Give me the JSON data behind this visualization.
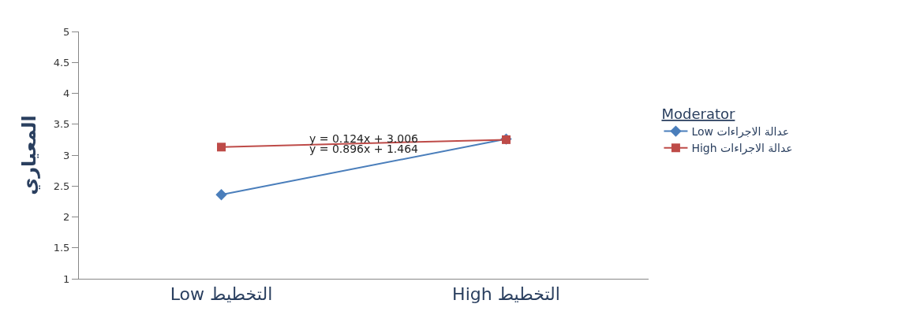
{
  "chart_data": {
    "type": "line",
    "ylabel": "المعياري",
    "legend_title": "Moderator",
    "categories": [
      "Low التخطيط",
      "High التخطيط"
    ],
    "series": [
      {
        "name": "Low عدالة الاجراءات",
        "color": "#4a7ebb",
        "values": [
          2.36,
          3.26
        ],
        "marker": "diamond"
      },
      {
        "name": "High عدالة الاجراءات",
        "color": "#be4b48",
        "values": [
          3.13,
          3.25
        ],
        "marker": "square"
      }
    ],
    "annotations": [
      "y = 0.124x + 3.006",
      "y = 0.896x + 1.464"
    ],
    "ylim": [
      1,
      5
    ],
    "yticks": [
      1,
      1.5,
      2,
      2.5,
      3,
      3.5,
      4,
      4.5,
      5
    ],
    "legend": "right",
    "line_style": "solid"
  }
}
